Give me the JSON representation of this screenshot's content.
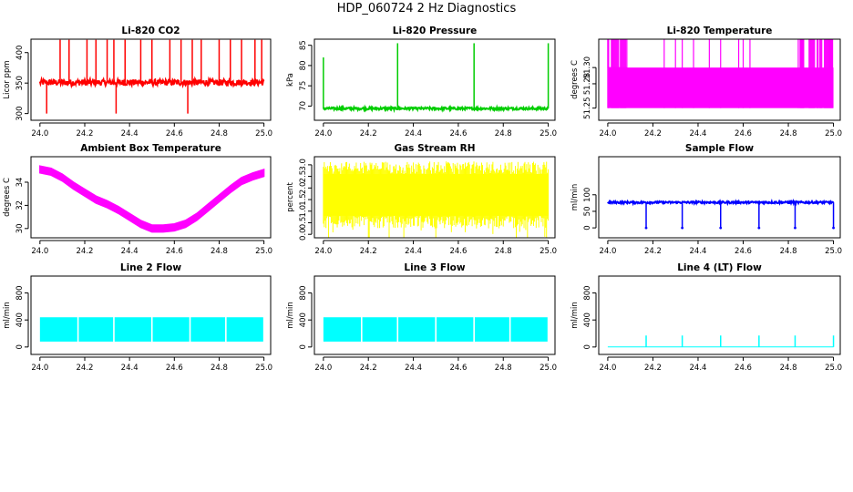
{
  "page_title": "HDP_060724  2 Hz Diagnostics",
  "colors": {
    "red": "#ff0000",
    "green": "#00cd00",
    "magenta": "#ff00ff",
    "yellow": "#ffff00",
    "blue": "#0000ff",
    "cyan": "#00ffff"
  },
  "chart_data": [
    {
      "id": "co2",
      "type": "line",
      "title": "Li-820 CO2",
      "xlabel": "",
      "ylabel": "Licor ppm",
      "xlim": [
        23.96,
        25.03
      ],
      "ylim": [
        289,
        422
      ],
      "xticks": [
        "24.0",
        "24.2",
        "24.4",
        "24.6",
        "24.8",
        "25.0"
      ],
      "yticks": [
        {
          "v": 300,
          "l": "300"
        },
        {
          "v": 350,
          "l": "350"
        },
        {
          "v": 400,
          "l": "400"
        }
      ],
      "series": [
        {
          "color": "#ff0000",
          "base": 351,
          "band": 5,
          "spikes": [
            [
              24.03,
              300
            ],
            [
              24.09,
              421
            ],
            [
              24.13,
              421
            ],
            [
              24.21,
              421
            ],
            [
              24.25,
              421
            ],
            [
              24.3,
              421
            ],
            [
              24.33,
              421
            ],
            [
              24.34,
              300
            ],
            [
              24.38,
              421
            ],
            [
              24.45,
              421
            ],
            [
              24.5,
              421
            ],
            [
              24.58,
              421
            ],
            [
              24.63,
              421
            ],
            [
              24.66,
              300
            ],
            [
              24.68,
              421
            ],
            [
              24.72,
              421
            ],
            [
              24.8,
              421
            ],
            [
              24.85,
              421
            ],
            [
              24.9,
              421
            ],
            [
              24.96,
              421
            ],
            [
              24.99,
              421
            ]
          ]
        }
      ]
    },
    {
      "id": "pressure",
      "type": "line",
      "title": "Li-820 Pressure",
      "xlabel": "",
      "ylabel": "kPa",
      "xlim": [
        23.96,
        25.03
      ],
      "ylim": [
        66.5,
        86.5
      ],
      "xticks": [
        "24.0",
        "24.2",
        "24.4",
        "24.6",
        "24.8",
        "25.0"
      ],
      "yticks": [
        {
          "v": 70,
          "l": "70"
        },
        {
          "v": 75,
          "l": "75"
        },
        {
          "v": 80,
          "l": "80"
        },
        {
          "v": 85,
          "l": "85"
        }
      ],
      "series": [
        {
          "color": "#00cd00",
          "base": 69.4,
          "band": 0.3,
          "spikes": [
            [
              24.0,
              82
            ],
            [
              24.33,
              85.5
            ],
            [
              24.67,
              85.5
            ],
            [
              25.0,
              85.5
            ]
          ]
        }
      ]
    },
    {
      "id": "temp820",
      "type": "line",
      "title": "Li-820 Temperature",
      "xlabel": "",
      "ylabel": "degrees C",
      "xlim": [
        23.96,
        25.03
      ],
      "ylim": [
        51.235,
        51.335
      ],
      "xticks": [
        "24.0",
        "24.2",
        "24.4",
        "24.6",
        "24.8",
        "25.0"
      ],
      "yticks": [
        {
          "v": 51.25,
          "l": "51.25"
        },
        {
          "v": 51.28,
          "l": "51.28"
        },
        {
          "v": 51.3,
          "l": "51.30"
        }
      ],
      "series": [
        {
          "color": "#ff00ff",
          "low": 51.25,
          "mid": 51.3,
          "high": 51.34
        }
      ]
    },
    {
      "id": "ambient",
      "type": "line",
      "title": "Ambient Box Temperature",
      "xlabel": "",
      "ylabel": "degrees C",
      "xlim": [
        23.96,
        25.03
      ],
      "ylim": [
        29.2,
        36.2
      ],
      "xticks": [
        "24.0",
        "24.2",
        "24.4",
        "24.6",
        "24.8",
        "25.0"
      ],
      "yticks": [
        {
          "v": 30,
          "l": "30"
        },
        {
          "v": 32,
          "l": "32"
        },
        {
          "v": 34,
          "l": "34"
        }
      ],
      "series": [
        {
          "color": "#ff00ff",
          "band": 0.6,
          "x": [
            24.0,
            24.05,
            24.1,
            24.15,
            24.2,
            24.25,
            24.3,
            24.35,
            24.4,
            24.45,
            24.5,
            24.55,
            24.6,
            24.65,
            24.7,
            24.75,
            24.8,
            24.85,
            24.9,
            24.95,
            25.0
          ],
          "y": [
            35.1,
            34.9,
            34.4,
            33.7,
            33.1,
            32.5,
            32.1,
            31.6,
            31.0,
            30.4,
            30.0,
            30.0,
            30.1,
            30.4,
            31.0,
            31.8,
            32.6,
            33.4,
            34.1,
            34.5,
            34.8
          ]
        }
      ]
    },
    {
      "id": "rh",
      "type": "line",
      "title": "Gas Stream RH",
      "xlabel": "",
      "ylabel": "percent",
      "xlim": [
        23.96,
        25.03
      ],
      "ylim": [
        -0.15,
        3.35
      ],
      "xticks": [
        "24.0",
        "24.2",
        "24.4",
        "24.6",
        "24.8",
        "25.0"
      ],
      "yticks": [
        {
          "v": 0,
          "l": "0.0"
        },
        {
          "v": 0.5,
          "l": "0.5"
        },
        {
          "v": 1,
          "l": "1.0"
        },
        {
          "v": 1.5,
          "l": "1.5"
        },
        {
          "v": 2,
          "l": "2.0"
        },
        {
          "v": 2.5,
          "l": "2.5"
        },
        {
          "v": 3,
          "l": "3.0"
        }
      ],
      "series": [
        {
          "color": "#ffff00",
          "low": 0.8,
          "high": 2.6
        }
      ]
    },
    {
      "id": "sampleflow",
      "type": "line",
      "title": "Sample Flow",
      "xlabel": "",
      "ylabel": "ml/min",
      "xlim": [
        23.96,
        25.03
      ],
      "ylim": [
        -30,
        215
      ],
      "xticks": [
        "24.0",
        "24.2",
        "24.4",
        "24.6",
        "24.8",
        "25.0"
      ],
      "yticks": [
        {
          "v": 0,
          "l": "0"
        },
        {
          "v": 50,
          "l": "50"
        },
        {
          "v": 100,
          "l": "100"
        }
      ],
      "series": [
        {
          "color": "#0000ff",
          "base": 77,
          "band": 3,
          "spikes": [
            [
              24.17,
              0
            ],
            [
              24.33,
              0
            ],
            [
              24.5,
              0
            ],
            [
              24.67,
              0
            ],
            [
              24.83,
              0
            ],
            [
              25.0,
              0
            ]
          ]
        }
      ]
    },
    {
      "id": "line2",
      "type": "line",
      "title": "Line 2 Flow",
      "xlabel": "",
      "ylabel": "ml/min",
      "xlim": [
        23.96,
        25.03
      ],
      "ylim": [
        -110,
        1050
      ],
      "xticks": [
        "24.0",
        "24.2",
        "24.4",
        "24.6",
        "24.8",
        "25.0"
      ],
      "yticks": [
        {
          "v": 0,
          "l": "0"
        },
        {
          "v": 400,
          "l": "400"
        },
        {
          "v": 800,
          "l": "800"
        }
      ],
      "series": [
        {
          "color": "#00ffff",
          "low": 80,
          "high": 440,
          "gaps": [
            24.17,
            24.33,
            24.5,
            24.67,
            24.83,
            25.0
          ]
        }
      ]
    },
    {
      "id": "line3",
      "type": "line",
      "title": "Line 3 Flow",
      "xlabel": "",
      "ylabel": "ml/min",
      "xlim": [
        23.96,
        25.03
      ],
      "ylim": [
        -110,
        1050
      ],
      "xticks": [
        "24.0",
        "24.2",
        "24.4",
        "24.6",
        "24.8",
        "25.0"
      ],
      "yticks": [
        {
          "v": 0,
          "l": "0"
        },
        {
          "v": 400,
          "l": "400"
        },
        {
          "v": 800,
          "l": "800"
        }
      ],
      "series": [
        {
          "color": "#00ffff",
          "low": 80,
          "high": 440,
          "gaps": [
            24.17,
            24.33,
            24.5,
            24.67,
            24.83,
            25.0
          ]
        }
      ]
    },
    {
      "id": "line4",
      "type": "line",
      "title": "Line 4 (LT) Flow",
      "xlabel": "",
      "ylabel": "ml/min",
      "xlim": [
        23.96,
        25.03
      ],
      "ylim": [
        -110,
        1050
      ],
      "xticks": [
        "24.0",
        "24.2",
        "24.4",
        "24.6",
        "24.8",
        "25.0"
      ],
      "yticks": [
        {
          "v": 0,
          "l": "0"
        },
        {
          "v": 400,
          "l": "400"
        },
        {
          "v": 800,
          "l": "800"
        }
      ],
      "series": [
        {
          "color": "#00ffff",
          "base": 0,
          "band": 0,
          "spikes": [
            [
              24.17,
              170
            ],
            [
              24.33,
              170
            ],
            [
              24.5,
              170
            ],
            [
              24.67,
              170
            ],
            [
              24.83,
              170
            ],
            [
              25.0,
              170
            ]
          ]
        }
      ]
    }
  ]
}
